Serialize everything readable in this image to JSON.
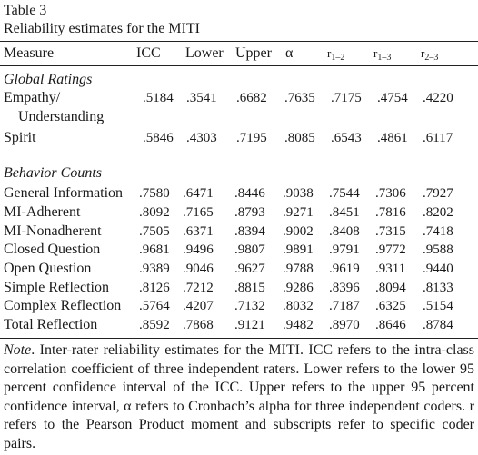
{
  "caption": {
    "table_number": "Table 3",
    "title": "Reliability estimates for the MITI"
  },
  "columns": {
    "measure": "Measure",
    "icc": "ICC",
    "lower": "Lower",
    "upper": "Upper",
    "alpha": "α",
    "r12_base": "r",
    "r12_sub": "1–2",
    "r13_base": "r",
    "r13_sub": "1–3",
    "r23_base": "r",
    "r23_sub": "2–3"
  },
  "sections": {
    "global": "Global Ratings",
    "behavior": "Behavior Counts"
  },
  "global_rows": [
    {
      "label": "Empathy/",
      "label2": "Understanding",
      "values": [
        ".5184",
        ".3541",
        ".6682",
        ".7635",
        ".7175",
        ".4754",
        ".4220"
      ]
    },
    {
      "label": "Spirit",
      "values": [
        ".5846",
        ".4303",
        ".7195",
        ".8085",
        ".6543",
        ".4861",
        ".6117"
      ]
    }
  ],
  "behavior_rows": [
    {
      "label": "General Information",
      "values": [
        ".7580",
        ".6471",
        ".8446",
        ".9038",
        ".7544",
        ".7306",
        ".7927"
      ]
    },
    {
      "label": "MI-Adherent",
      "values": [
        ".8092",
        ".7165",
        ".8793",
        ".9271",
        ".8451",
        ".7816",
        ".8202"
      ]
    },
    {
      "label": "MI-Nonadherent",
      "values": [
        ".7505",
        ".6371",
        ".8394",
        ".9002",
        ".8408",
        ".7315",
        ".7418"
      ]
    },
    {
      "label": "Closed Question",
      "values": [
        ".9681",
        ".9496",
        ".9807",
        ".9891",
        ".9791",
        ".9772",
        ".9588"
      ]
    },
    {
      "label": "Open Question",
      "values": [
        ".9389",
        ".9046",
        ".9627",
        ".9788",
        ".9619",
        ".9311",
        ".9440"
      ]
    },
    {
      "label": "Simple Reflection",
      "values": [
        ".8126",
        ".7212",
        ".8815",
        ".9286",
        ".8396",
        ".8094",
        ".8133"
      ]
    },
    {
      "label": "Complex Reflection",
      "values": [
        ".5764",
        ".4207",
        ".7132",
        ".8032",
        ".7187",
        ".6325",
        ".5154"
      ]
    },
    {
      "label": "Total Reflection",
      "values": [
        ".8592",
        ".7868",
        ".9121",
        ".9482",
        ".8970",
        ".8646",
        ".8784"
      ]
    }
  ],
  "note": {
    "label": "Note",
    "text": ". Inter-rater reliability estimates for the MITI. ICC refers to the intra-class correlation coefficient of three independent raters. Lower refers to the lower 95 percent confidence interval of the ICC. Upper refers to the upper 95 percent confidence interval, α refers to Cronbach’s alpha for three independent coders. r refers to the Pearson Product moment and subscripts refer to specific coder pairs."
  }
}
